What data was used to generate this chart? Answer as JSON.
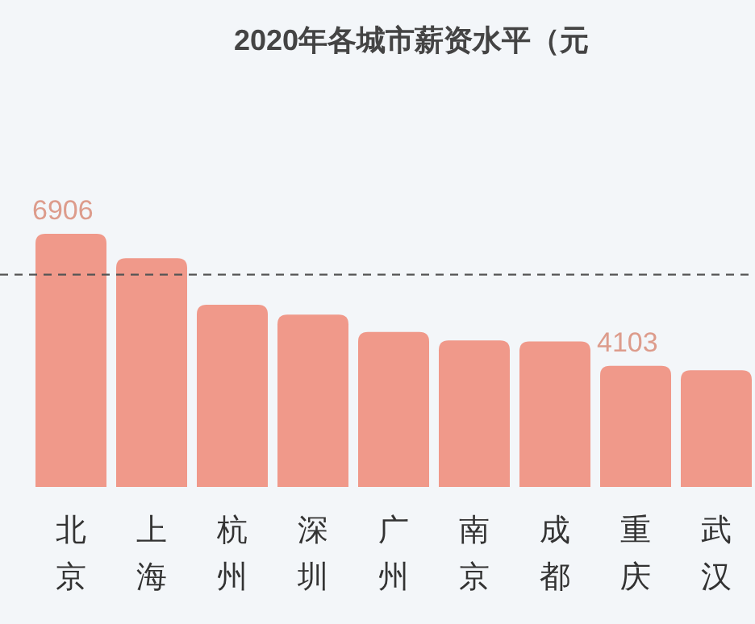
{
  "chart_data": {
    "type": "bar",
    "title": "2020年各城市薪资水平（元",
    "categories": [
      "北京",
      "上海",
      "杭州",
      "深圳",
      "广州",
      "南京",
      "成都",
      "重庆",
      "武汉"
    ],
    "values": [
      6906,
      6390,
      5400,
      5190,
      4820,
      4640,
      4620,
      4103,
      4010
    ],
    "value_labels": [
      "6906",
      null,
      null,
      null,
      null,
      null,
      null,
      "4103",
      null
    ],
    "color": "#f0998a",
    "ylim": [
      1530,
      6906
    ],
    "ref_lines": [
      {
        "axis": "y",
        "value": 6040,
        "line_style": "dashed",
        "color": "#555555"
      }
    ]
  }
}
